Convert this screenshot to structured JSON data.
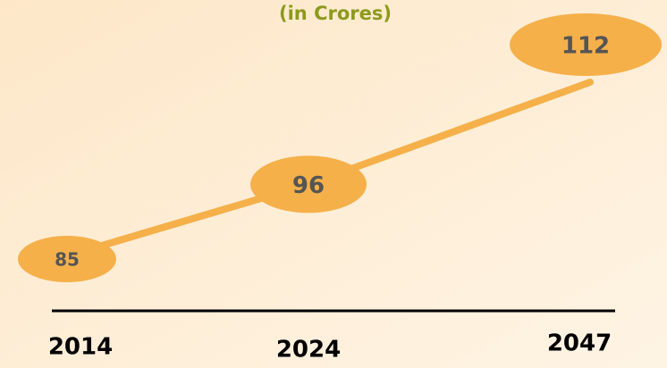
{
  "chart_data": {
    "type": "line",
    "subtitle": "(in Crores)",
    "categories": [
      "2014",
      "2024",
      "2047"
    ],
    "values": [
      85,
      96,
      112
    ],
    "color": "#f5b04a"
  }
}
